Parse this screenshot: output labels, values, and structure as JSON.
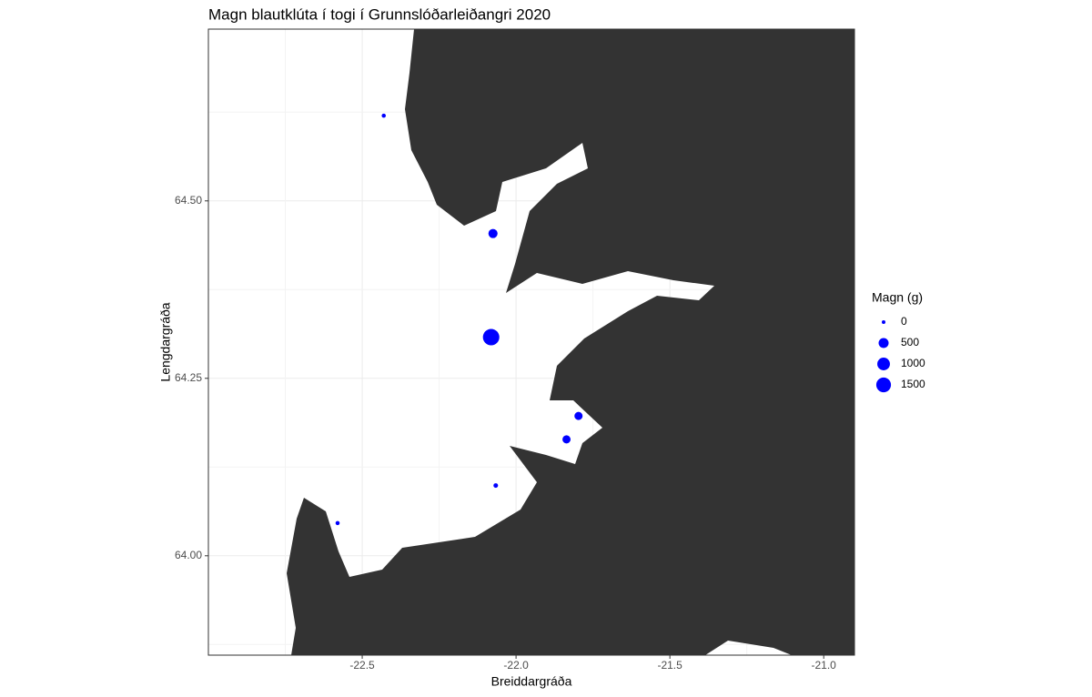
{
  "chart_data": {
    "type": "scatter",
    "title": "Magn blautklúta í togi í Grunnslóðarleiðangri 2020",
    "x_label": "Breiddargráða",
    "y_label": "Lengdargráða",
    "xlim": [
      -23.0,
      -20.9
    ],
    "ylim": [
      63.86,
      64.742
    ],
    "xticks": [
      {
        "value": -22.5,
        "label": "-22.5"
      },
      {
        "value": -22.0,
        "label": "-22.0"
      },
      {
        "value": -21.5,
        "label": "-21.5"
      },
      {
        "value": -21.0,
        "label": "-21.0"
      }
    ],
    "yticks": [
      {
        "value": 64.0,
        "label": "64.00"
      },
      {
        "value": 64.25,
        "label": "64.25"
      },
      {
        "value": 64.5,
        "label": "64.50"
      }
    ],
    "grid": true,
    "series": [
      {
        "color": "#0000ff",
        "x": [
          -22.43,
          -22.075,
          -22.081,
          -21.797,
          -21.836,
          -22.066,
          -22.58
        ],
        "values": [
          64.62,
          64.454,
          64.308,
          64.197,
          64.164,
          64.099,
          64.046
        ],
        "sizes": [
          3,
          370,
          2000,
          250,
          250,
          10,
          3
        ]
      }
    ],
    "size_legend": {
      "title": "Magn (g)",
      "values": [
        0,
        500,
        1000,
        1500
      ]
    }
  }
}
